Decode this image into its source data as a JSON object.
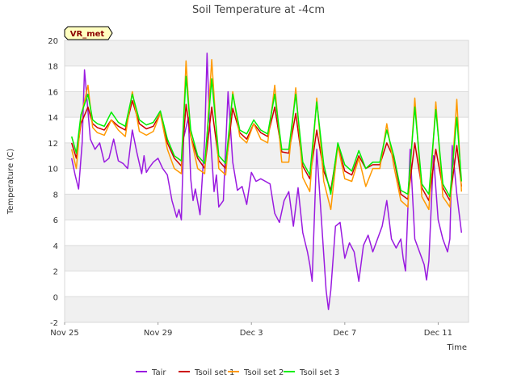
{
  "chart_data": {
    "type": "line",
    "title": "Soil Temperature at -4cm",
    "xlabel": "Time",
    "ylabel": "Temperature (C)",
    "badge": "VR_met",
    "x_unit": "days since Nov 25",
    "xlim": [
      0,
      17.3
    ],
    "ylim": [
      -2,
      20
    ],
    "yticks": [
      -2,
      0,
      2,
      4,
      6,
      8,
      10,
      12,
      14,
      16,
      18,
      20
    ],
    "xticks": [
      {
        "x": 0,
        "label": "Nov 25"
      },
      {
        "x": 4,
        "label": "Nov 29"
      },
      {
        "x": 8,
        "label": "Dec 3"
      },
      {
        "x": 12,
        "label": "Dec 7"
      },
      {
        "x": 16,
        "label": "Dec 11"
      }
    ],
    "bands": [
      [
        18,
        20
      ],
      [
        14,
        16
      ],
      [
        10,
        12
      ],
      [
        6,
        8
      ],
      [
        2,
        4
      ],
      [
        -2,
        0
      ]
    ],
    "legend_position": "bottom",
    "series": [
      {
        "name": "Tair",
        "color": "#9a1be0",
        "x": [
          0.3,
          0.45,
          0.6,
          0.75,
          0.85,
          1.0,
          1.1,
          1.3,
          1.5,
          1.7,
          1.9,
          2.1,
          2.3,
          2.5,
          2.7,
          2.9,
          3.1,
          3.3,
          3.4,
          3.5,
          3.6,
          3.8,
          4.0,
          4.2,
          4.4,
          4.6,
          4.8,
          4.9,
          5.0,
          5.1,
          5.3,
          5.4,
          5.5,
          5.6,
          5.8,
          6.0,
          6.1,
          6.2,
          6.3,
          6.4,
          6.5,
          6.6,
          6.8,
          7.0,
          7.2,
          7.4,
          7.6,
          7.8,
          8.0,
          8.2,
          8.4,
          8.6,
          8.8,
          9.0,
          9.2,
          9.4,
          9.6,
          9.8,
          10.0,
          10.2,
          10.4,
          10.5,
          10.6,
          10.8,
          11.0,
          11.2,
          11.3,
          11.4,
          11.6,
          11.8,
          12.0,
          12.2,
          12.4,
          12.6,
          12.8,
          13.0,
          13.2,
          13.4,
          13.6,
          13.8,
          14.0,
          14.2,
          14.4,
          14.5,
          14.6,
          14.8,
          15.0,
          15.2,
          15.4,
          15.5,
          15.6,
          15.8,
          16.0,
          16.2,
          16.4,
          16.5,
          16.6,
          16.8,
          17.0
        ],
        "y": [
          10.8,
          9.5,
          8.4,
          12.0,
          17.7,
          14.5,
          12.3,
          11.5,
          12.0,
          10.5,
          10.8,
          12.3,
          10.6,
          10.4,
          10.0,
          13.0,
          11.2,
          9.6,
          11.0,
          9.7,
          10.0,
          10.5,
          10.8,
          10.0,
          9.5,
          7.5,
          6.2,
          6.8,
          6.0,
          12.4,
          14.0,
          9.2,
          7.5,
          8.4,
          6.4,
          12.3,
          19.0,
          14.0,
          11.0,
          8.2,
          9.5,
          7.0,
          7.5,
          16.0,
          10.5,
          8.3,
          8.6,
          7.2,
          9.7,
          9.0,
          9.2,
          9.0,
          8.8,
          6.5,
          5.8,
          7.5,
          8.2,
          5.5,
          8.5,
          5.0,
          3.5,
          2.5,
          1.2,
          11.5,
          6.0,
          0.5,
          -1.0,
          0.5,
          5.5,
          5.8,
          3.0,
          4.2,
          3.5,
          1.2,
          4.0,
          4.8,
          3.5,
          4.5,
          5.5,
          7.5,
          4.5,
          3.8,
          4.5,
          3.0,
          2.0,
          11.5,
          4.5,
          3.5,
          2.5,
          1.3,
          2.8,
          11.0,
          6.0,
          4.5,
          3.5,
          4.5,
          11.8,
          8.0,
          5.0
        ]
      },
      {
        "name": "Tsoil set 1",
        "color": "#cc0000",
        "x": [
          0.3,
          0.5,
          0.7,
          1.0,
          1.2,
          1.4,
          1.7,
          2.0,
          2.3,
          2.6,
          2.9,
          3.2,
          3.5,
          3.8,
          4.1,
          4.4,
          4.7,
          5.0,
          5.2,
          5.4,
          5.7,
          6.0,
          6.3,
          6.6,
          6.9,
          7.2,
          7.5,
          7.8,
          8.1,
          8.4,
          8.7,
          9.0,
          9.3,
          9.6,
          9.9,
          10.2,
          10.5,
          10.8,
          11.1,
          11.4,
          11.7,
          12.0,
          12.3,
          12.6,
          12.9,
          13.2,
          13.5,
          13.8,
          14.1,
          14.4,
          14.7,
          15.0,
          15.3,
          15.6,
          15.9,
          16.2,
          16.5,
          16.8,
          17.0
        ],
        "y": [
          12.0,
          10.8,
          13.5,
          14.8,
          13.5,
          13.2,
          13.0,
          13.8,
          13.3,
          13.0,
          15.3,
          13.5,
          13.1,
          13.3,
          14.3,
          12.0,
          10.8,
          10.2,
          15.0,
          12.5,
          10.8,
          10.0,
          14.8,
          10.6,
          10.0,
          14.7,
          12.8,
          12.3,
          13.5,
          12.8,
          12.5,
          14.8,
          11.3,
          11.2,
          14.3,
          10.2,
          9.2,
          13.0,
          9.8,
          8.3,
          11.8,
          9.8,
          9.5,
          11.0,
          10.0,
          10.3,
          10.3,
          12.0,
          10.8,
          8.0,
          7.6,
          12.0,
          8.5,
          7.5,
          11.5,
          8.5,
          7.5,
          11.8,
          8.6
        ]
      },
      {
        "name": "Tsoil set 2",
        "color": "#ff9900",
        "x": [
          0.3,
          0.5,
          0.7,
          1.0,
          1.2,
          1.4,
          1.7,
          2.0,
          2.3,
          2.6,
          2.9,
          3.2,
          3.5,
          3.8,
          4.1,
          4.4,
          4.7,
          5.0,
          5.2,
          5.4,
          5.7,
          6.0,
          6.3,
          6.6,
          6.9,
          7.2,
          7.5,
          7.8,
          8.1,
          8.4,
          8.7,
          9.0,
          9.3,
          9.6,
          9.9,
          10.2,
          10.5,
          10.8,
          11.1,
          11.4,
          11.7,
          12.0,
          12.3,
          12.6,
          12.9,
          13.2,
          13.5,
          13.8,
          14.1,
          14.4,
          14.7,
          15.0,
          15.3,
          15.6,
          15.9,
          16.2,
          16.5,
          16.8,
          17.0
        ],
        "y": [
          11.5,
          10.0,
          14.0,
          16.5,
          13.2,
          12.8,
          12.6,
          13.8,
          13.0,
          12.5,
          16.0,
          12.9,
          12.6,
          12.9,
          14.3,
          11.5,
          10.0,
          9.6,
          18.4,
          12.5,
          10.0,
          9.6,
          18.5,
          10.0,
          9.5,
          16.0,
          12.5,
          12.0,
          13.5,
          12.3,
          12.0,
          16.5,
          10.5,
          10.5,
          16.3,
          9.3,
          8.2,
          15.5,
          9.0,
          6.8,
          11.8,
          9.2,
          9.0,
          10.8,
          8.6,
          10.0,
          10.0,
          13.5,
          10.2,
          7.5,
          7.0,
          15.5,
          7.8,
          6.8,
          15.2,
          7.8,
          7.0,
          15.4,
          8.2
        ]
      },
      {
        "name": "Tsoil set 3",
        "color": "#00ee00",
        "x": [
          0.3,
          0.5,
          0.7,
          1.0,
          1.2,
          1.4,
          1.7,
          2.0,
          2.3,
          2.6,
          2.9,
          3.2,
          3.5,
          3.8,
          4.1,
          4.4,
          4.7,
          5.0,
          5.2,
          5.4,
          5.7,
          6.0,
          6.3,
          6.6,
          6.9,
          7.2,
          7.5,
          7.8,
          8.1,
          8.4,
          8.7,
          9.0,
          9.3,
          9.6,
          9.9,
          10.2,
          10.5,
          10.8,
          11.1,
          11.4,
          11.7,
          12.0,
          12.3,
          12.6,
          12.9,
          13.2,
          13.5,
          13.8,
          14.1,
          14.4,
          14.7,
          15.0,
          15.3,
          15.6,
          15.9,
          16.2,
          16.5,
          16.8,
          17.0
        ],
        "y": [
          12.5,
          11.2,
          14.2,
          15.8,
          13.8,
          13.5,
          13.3,
          14.4,
          13.6,
          13.3,
          15.8,
          13.8,
          13.4,
          13.6,
          14.5,
          12.3,
          11.0,
          10.6,
          17.2,
          13.0,
          11.0,
          10.4,
          17.0,
          11.0,
          10.4,
          15.8,
          13.0,
          12.7,
          13.8,
          13.0,
          12.7,
          15.8,
          11.5,
          11.5,
          15.8,
          10.5,
          9.5,
          15.2,
          10.3,
          8.0,
          12.0,
          10.3,
          9.8,
          11.4,
          10.0,
          10.5,
          10.5,
          13.0,
          11.0,
          8.3,
          8.0,
          14.8,
          8.8,
          8.0,
          14.6,
          8.8,
          7.8,
          14.0,
          9.0
        ]
      }
    ]
  }
}
